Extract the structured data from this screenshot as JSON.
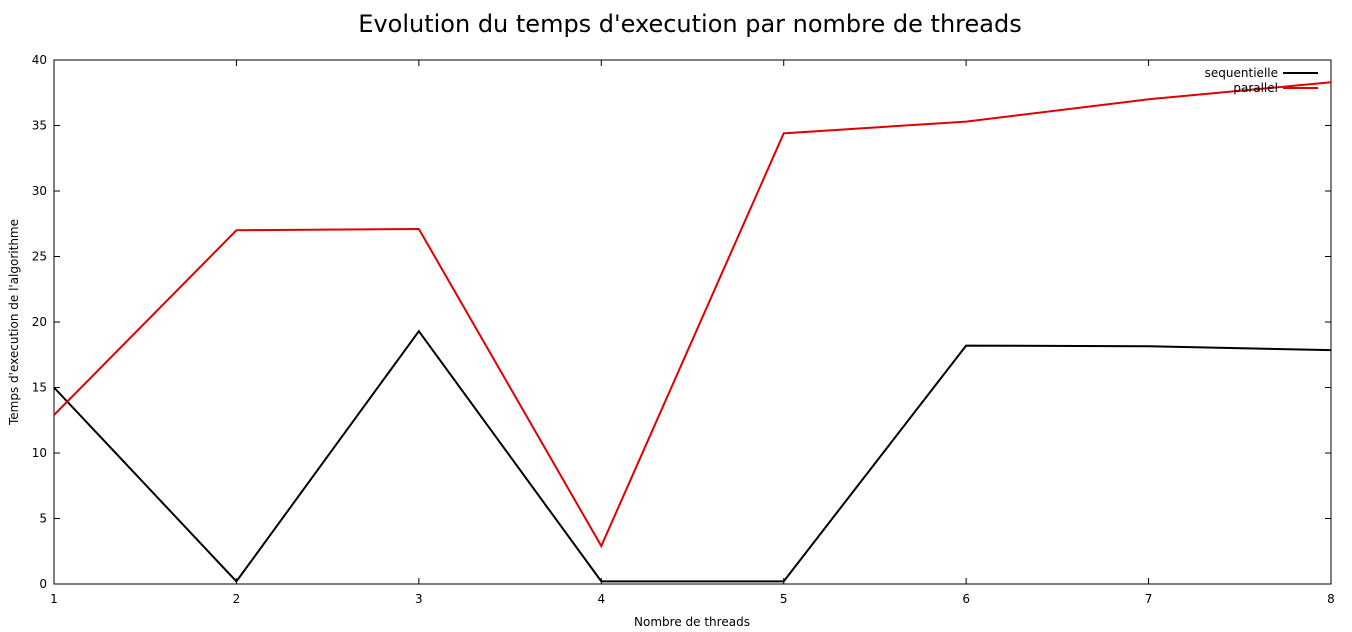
{
  "chart_data": {
    "type": "line",
    "title": "Evolution du temps d'execution par nombre de threads",
    "xlabel": "Nombre de threads",
    "ylabel": "Temps d'execution de l'algorithme",
    "x": [
      1,
      2,
      3,
      4,
      5,
      6,
      7,
      8
    ],
    "xlim": [
      1,
      8
    ],
    "ylim": [
      0,
      40
    ],
    "xticks": [
      1,
      2,
      3,
      4,
      5,
      6,
      7,
      8
    ],
    "yticks": [
      0,
      5,
      10,
      15,
      20,
      25,
      30,
      35,
      40
    ],
    "grid": false,
    "legend_position": "top-right",
    "series": [
      {
        "name": "sequentielle",
        "color": "#000000",
        "values": [
          15.0,
          0.2,
          19.3,
          0.2,
          0.2,
          18.2,
          18.15,
          17.85
        ]
      },
      {
        "name": "parallel",
        "color": "#e00000",
        "values": [
          12.9,
          27.0,
          27.1,
          2.9,
          34.4,
          35.3,
          37.0,
          38.3
        ]
      }
    ]
  }
}
